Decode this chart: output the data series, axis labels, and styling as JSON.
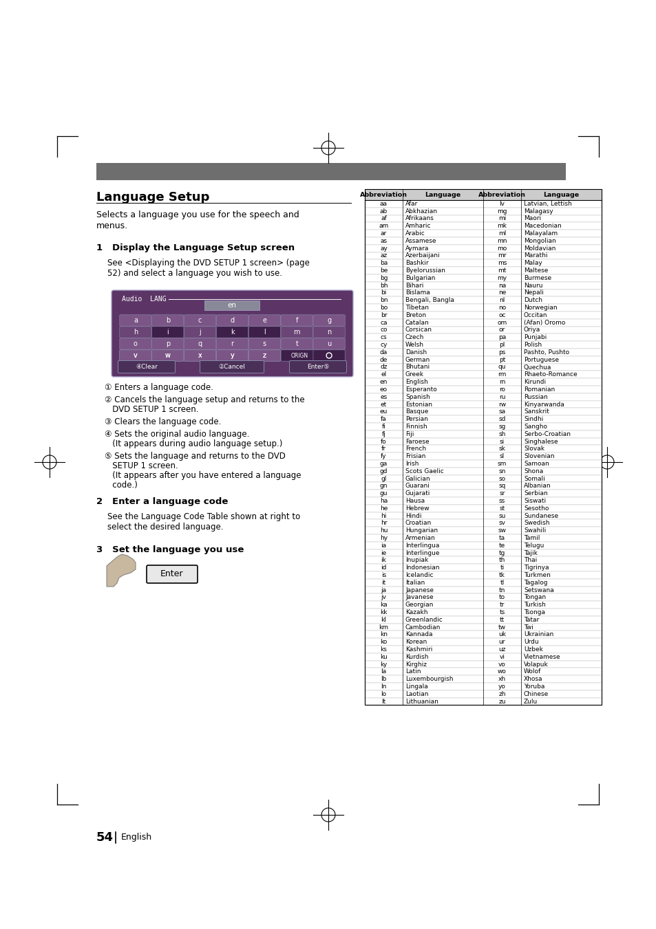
{
  "title": "Language Setup",
  "subtitle_line1": "Selects a language you use for the speech and",
  "subtitle_line2": "menus.",
  "step1_title": "1   Display the Language Setup screen",
  "step1_text_line1": "See <Displaying the DVD SETUP 1 screen> (page",
  "step1_text_line2": "52) and select a language you wish to use.",
  "numbered_items": [
    [
      "① Enters a language code."
    ],
    [
      "② Cancels the language setup and returns to the",
      "   DVD SETUP 1 screen."
    ],
    [
      "③ Clears the language code."
    ],
    [
      "④ Sets the original audio language.",
      "   (It appears during audio language setup.)"
    ],
    [
      "⑤ Sets the language and returns to the DVD",
      "   SETUP 1 screen.",
      "   (It appears after you have entered a language",
      "   code.)"
    ]
  ],
  "step2_title": "2   Enter a language code",
  "step2_text_line1": "See the Language Code Table shown at right to",
  "step2_text_line2": "select the desired language.",
  "step3_title": "3   Set the language you use",
  "page_number": "54",
  "page_label": "English",
  "table_data": [
    [
      "aa",
      "Afar",
      "lv",
      "Latvian, Lettish"
    ],
    [
      "ab",
      "Abkhazian",
      "mg",
      "Malagasy"
    ],
    [
      "af",
      "Afrikaans",
      "mi",
      "Maori"
    ],
    [
      "am",
      "Amharic",
      "mk",
      "Macedonian"
    ],
    [
      "ar",
      "Arabic",
      "ml",
      "Malayalam"
    ],
    [
      "as",
      "Assamese",
      "mn",
      "Mongolian"
    ],
    [
      "ay",
      "Aymara",
      "mo",
      "Moldavian"
    ],
    [
      "az",
      "Azerbaijani",
      "mr",
      "Marathi"
    ],
    [
      "ba",
      "Bashkir",
      "ms",
      "Malay"
    ],
    [
      "be",
      "Byelorussian",
      "mt",
      "Maltese"
    ],
    [
      "bg",
      "Bulgarian",
      "my",
      "Burmese"
    ],
    [
      "bh",
      "Bihari",
      "na",
      "Nauru"
    ],
    [
      "bi",
      "Bislama",
      "ne",
      "Nepali"
    ],
    [
      "bn",
      "Bengali, Bangla",
      "nl",
      "Dutch"
    ],
    [
      "bo",
      "Tibetan",
      "no",
      "Norwegian"
    ],
    [
      "br",
      "Breton",
      "oc",
      "Occitan"
    ],
    [
      "ca",
      "Catalan",
      "om",
      "(Afan) Oromo"
    ],
    [
      "co",
      "Corsican",
      "or",
      "Oriya"
    ],
    [
      "cs",
      "Czech",
      "pa",
      "Punjabi"
    ],
    [
      "cy",
      "Welsh",
      "pl",
      "Polish"
    ],
    [
      "da",
      "Danish",
      "ps",
      "Pashto, Pushto"
    ],
    [
      "de",
      "German",
      "pt",
      "Portuguese"
    ],
    [
      "dz",
      "Bhutani",
      "qu",
      "Quechua"
    ],
    [
      "el",
      "Greek",
      "rm",
      "Rhaeto-Romance"
    ],
    [
      "en",
      "English",
      "rn",
      "Kirundi"
    ],
    [
      "eo",
      "Esperanto",
      "ro",
      "Romanian"
    ],
    [
      "es",
      "Spanish",
      "ru",
      "Russian"
    ],
    [
      "et",
      "Estonian",
      "rw",
      "Kinyarwanda"
    ],
    [
      "eu",
      "Basque",
      "sa",
      "Sanskrit"
    ],
    [
      "fa",
      "Persian",
      "sd",
      "Sindhi"
    ],
    [
      "fi",
      "Finnish",
      "sg",
      "Sangho"
    ],
    [
      "fj",
      "Fiji",
      "sh",
      "Serbo-Croatian"
    ],
    [
      "fo",
      "Faroese",
      "si",
      "Singhalese"
    ],
    [
      "fr",
      "French",
      "sk",
      "Slovak"
    ],
    [
      "fy",
      "Frisian",
      "sl",
      "Slovenian"
    ],
    [
      "ga",
      "Irish",
      "sm",
      "Samoan"
    ],
    [
      "gd",
      "Scots Gaelic",
      "sn",
      "Shona"
    ],
    [
      "gl",
      "Galician",
      "so",
      "Somali"
    ],
    [
      "gn",
      "Guarani",
      "sq",
      "Albanian"
    ],
    [
      "gu",
      "Gujarati",
      "sr",
      "Serbian"
    ],
    [
      "ha",
      "Hausa",
      "ss",
      "Siswati"
    ],
    [
      "he",
      "Hebrew",
      "st",
      "Sesotho"
    ],
    [
      "hi",
      "Hindi",
      "su",
      "Sundanese"
    ],
    [
      "hr",
      "Croatian",
      "sv",
      "Swedish"
    ],
    [
      "hu",
      "Hungarian",
      "sw",
      "Swahili"
    ],
    [
      "hy",
      "Armenian",
      "ta",
      "Tamil"
    ],
    [
      "ia",
      "Interlingua",
      "te",
      "Telugu"
    ],
    [
      "ie",
      "Interlingue",
      "tg",
      "Tajik"
    ],
    [
      "ik",
      "Inupiak",
      "th",
      "Thai"
    ],
    [
      "id",
      "Indonesian",
      "ti",
      "Tigrinya"
    ],
    [
      "is",
      "Icelandic",
      "tk",
      "Turkmen"
    ],
    [
      "it",
      "Italian",
      "tl",
      "Tagalog"
    ],
    [
      "ja",
      "Japanese",
      "tn",
      "Setswana"
    ],
    [
      "jv",
      "Javanese",
      "to",
      "Tongan"
    ],
    [
      "ka",
      "Georgian",
      "tr",
      "Turkish"
    ],
    [
      "kk",
      "Kazakh",
      "ts",
      "Tsonga"
    ],
    [
      "kl",
      "Greenlandic",
      "tt",
      "Tatar"
    ],
    [
      "km",
      "Cambodian",
      "tw",
      "Twi"
    ],
    [
      "kn",
      "Kannada",
      "uk",
      "Ukrainian"
    ],
    [
      "ko",
      "Korean",
      "ur",
      "Urdu"
    ],
    [
      "ks",
      "Kashmiri",
      "uz",
      "Uzbek"
    ],
    [
      "ku",
      "Kurdish",
      "vi",
      "Vietnamese"
    ],
    [
      "ky",
      "Kirghiz",
      "vo",
      "Volapuk"
    ],
    [
      "la",
      "Latin",
      "wo",
      "Wolof"
    ],
    [
      "lb",
      "Luxembourgish",
      "xh",
      "Xhosa"
    ],
    [
      "ln",
      "Lingala",
      "yo",
      "Yoruba"
    ],
    [
      "lo",
      "Laotian",
      "zh",
      "Chinese"
    ],
    [
      "lt",
      "Lithuanian",
      "zu",
      "Zulu"
    ]
  ],
  "col_headers": [
    "Abbreviation",
    "Language",
    "Abbreviation",
    "Language"
  ],
  "bg_color": "#ffffff",
  "header_bar_color": "#6e6e6e",
  "keyboard_bg": "#5c3566",
  "keyboard_key_light": "#7a5585",
  "keyboard_key_dark": "#3d1f4a",
  "keyboard_key_mid": "#6a4575"
}
